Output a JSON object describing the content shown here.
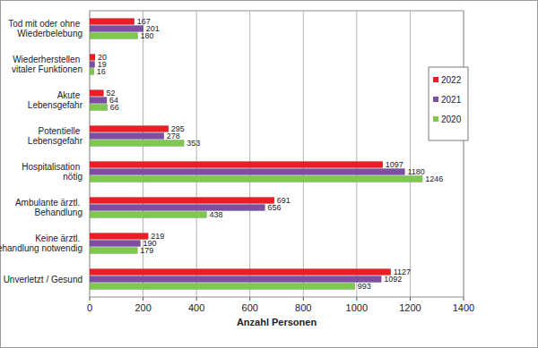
{
  "chart_data": {
    "type": "bar",
    "orientation": "horizontal",
    "categories": [
      "Tod mit oder ohne\nWiederbelebung",
      "Wiederherstellen\nvitaler Funktionen",
      "Akute\nLebensgefahr",
      "Potentielle\nLebensgefahr",
      "Hospitalisation\nnötig",
      "Ambulante ärztl.\nBehandlung",
      "Keine ärztl.\nBehandlung notwendig",
      "Unverletzt / Gesund"
    ],
    "series": [
      {
        "name": "2022",
        "color": "#ee1c24",
        "values": [
          167,
          20,
          52,
          295,
          1097,
          691,
          219,
          1127
        ]
      },
      {
        "name": "2021",
        "color": "#7d4fa3",
        "values": [
          201,
          19,
          64,
          278,
          1180,
          656,
          190,
          1092
        ]
      },
      {
        "name": "2020",
        "color": "#7ec84f",
        "values": [
          180,
          16,
          66,
          353,
          1246,
          438,
          179,
          993
        ]
      }
    ],
    "xlabel": "Anzahl Personen",
    "xlim": [
      0,
      1400
    ],
    "xticks": [
      0,
      200,
      400,
      600,
      800,
      1000,
      1200,
      1400
    ],
    "grid": true,
    "legend": "right",
    "data_labels": true
  }
}
